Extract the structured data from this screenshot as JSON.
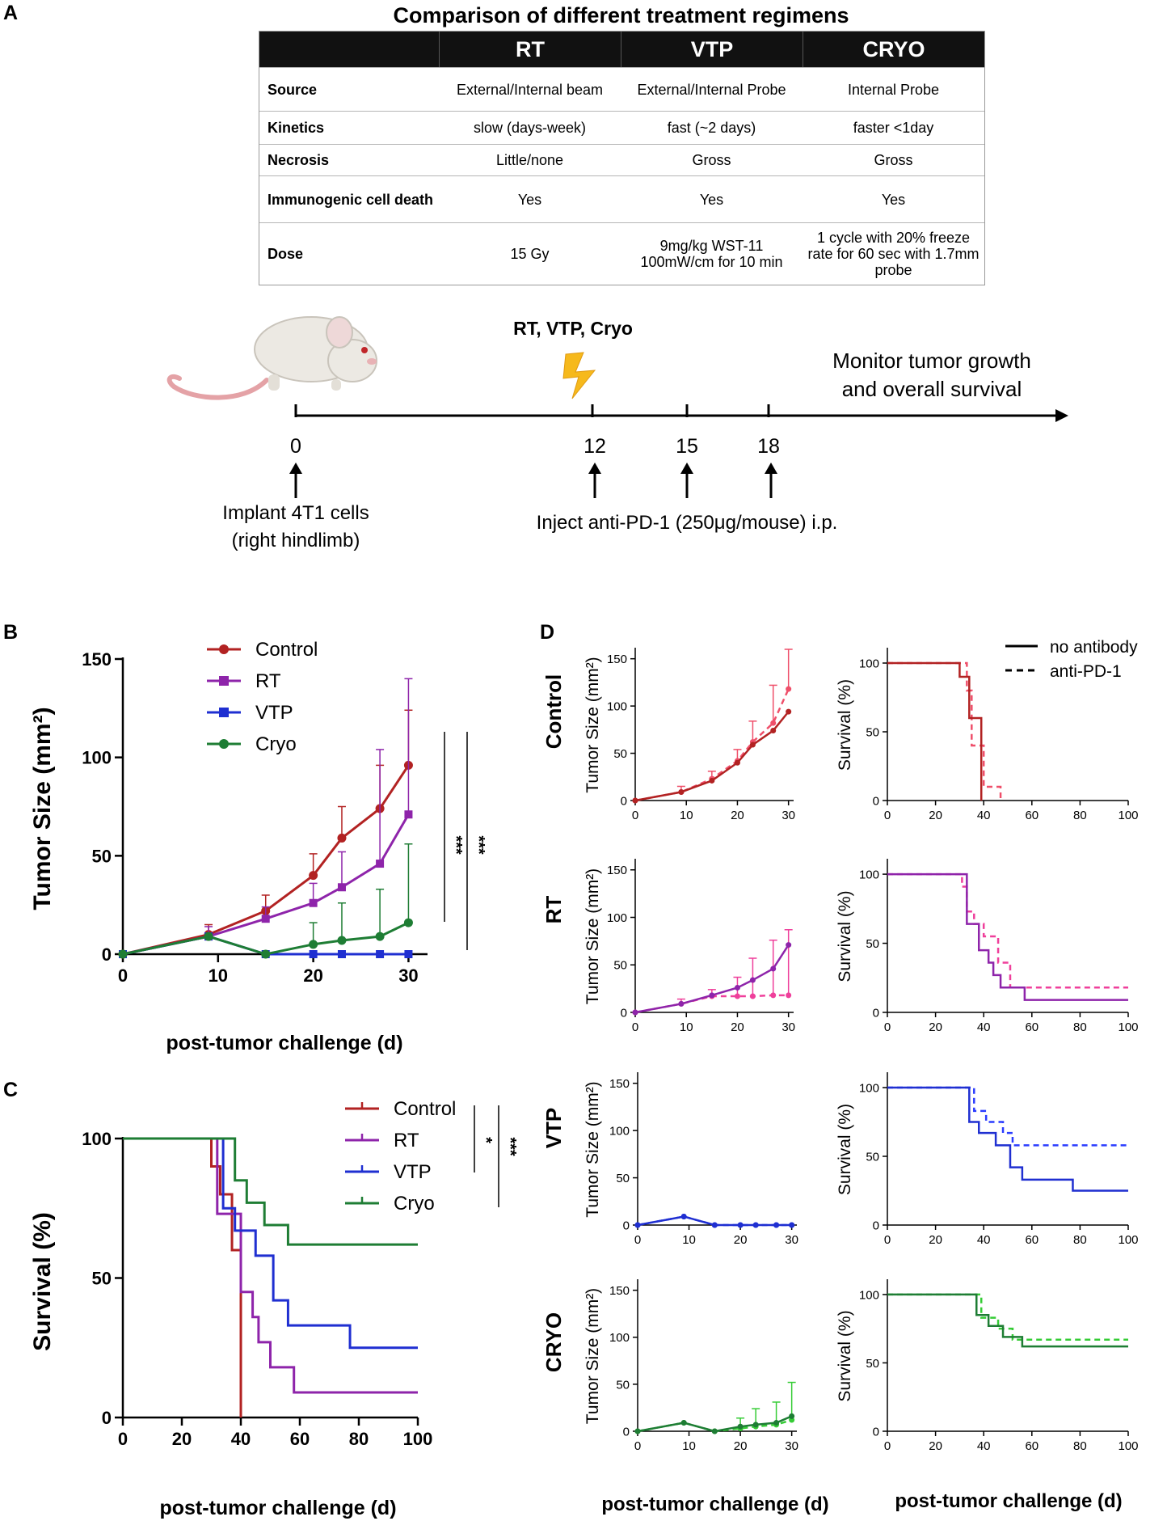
{
  "panels": {
    "a": "A",
    "b": "B",
    "c": "C",
    "d": "D"
  },
  "table": {
    "title": "Comparison of different treatment regimens",
    "headers": [
      "",
      "RT",
      "VTP",
      "CRYO"
    ],
    "rows": [
      [
        "Source",
        "External/Internal beam",
        "External/Internal Probe",
        "Internal Probe"
      ],
      [
        "Kinetics",
        "slow (days-week)",
        "fast (~2 days)",
        "faster <1day"
      ],
      [
        "Necrosis",
        "Little/none",
        "Gross",
        "Gross"
      ],
      [
        "Immunogenic cell death",
        "Yes",
        "Yes",
        "Yes"
      ],
      [
        "Dose",
        "15 Gy",
        "9mg/kg WST-11 100mW/cm for 10 min",
        "1 cycle with 20% freeze rate for 60 sec with 1.7mm probe"
      ]
    ]
  },
  "timeline": {
    "treatment_label": "RT, VTP, Cryo",
    "monitor_label_1": "Monitor tumor growth",
    "monitor_label_2": "and overall survival",
    "ticks": [
      "0",
      "12",
      "15",
      "18"
    ],
    "implant_label_1": "Implant 4T1 cells",
    "implant_label_2": "(right hindlimb)",
    "inject_label": "Inject anti-PD-1 (250μg/mouse) i.p."
  },
  "colors": {
    "control": "#b22222",
    "rt": "#8e24aa",
    "vtp": "#1f2fd1",
    "cryo": "#1e7d34",
    "control_pd1": "#ef4f6a",
    "rt_pd1": "#ef3f9b",
    "vtp_pd1": "#2a3cff",
    "cryo_pd1": "#35cc35"
  },
  "chart_data": [
    {
      "id": "B",
      "type": "line",
      "title": "",
      "xlabel": "post-tumor challenge (d)",
      "ylabel": "Tumor Size (mm²)",
      "xlim": [
        0,
        32
      ],
      "ylim": [
        0,
        150
      ],
      "xticks": [
        0,
        10,
        20,
        30
      ],
      "yticks": [
        0,
        50,
        100,
        150
      ],
      "legend": "top-left",
      "significance": [
        "***",
        "***"
      ],
      "series": [
        {
          "name": "Control",
          "key": "control",
          "x": [
            0,
            9,
            15,
            20,
            23,
            27,
            30
          ],
          "values": [
            0,
            10,
            22,
            40,
            59,
            74,
            96
          ],
          "err": [
            0,
            5,
            8,
            11,
            16,
            22,
            28
          ]
        },
        {
          "name": "RT",
          "key": "rt",
          "x": [
            0,
            9,
            15,
            20,
            23,
            27,
            30
          ],
          "values": [
            0,
            9,
            18,
            26,
            34,
            46,
            71
          ],
          "err": [
            0,
            5,
            6,
            10,
            18,
            58,
            69
          ]
        },
        {
          "name": "VTP",
          "key": "vtp",
          "x": [
            0,
            9,
            15,
            20,
            23,
            27,
            30
          ],
          "values": [
            0,
            9,
            0,
            0,
            0,
            0,
            0
          ],
          "err": [
            0,
            0,
            0,
            0,
            0,
            0,
            0
          ]
        },
        {
          "name": "Cryo",
          "key": "cryo",
          "x": [
            0,
            9,
            15,
            20,
            23,
            27,
            30
          ],
          "values": [
            0,
            9,
            0,
            5,
            7,
            9,
            16
          ],
          "err": [
            0,
            0,
            0,
            11,
            19,
            24,
            40
          ]
        }
      ]
    },
    {
      "id": "C",
      "type": "line",
      "title": "",
      "xlabel": "post-tumor challenge (d)",
      "ylabel": "Survival (%)",
      "xlim": [
        0,
        100
      ],
      "ylim": [
        0,
        100
      ],
      "xticks": [
        0,
        20,
        40,
        60,
        80,
        100
      ],
      "yticks": [
        0,
        50,
        100
      ],
      "legend": "top-right",
      "significance": [
        "*",
        "***"
      ],
      "series": [
        {
          "name": "Control",
          "key": "control",
          "steps": [
            [
              0,
              100
            ],
            [
              30,
              90
            ],
            [
              33,
              80
            ],
            [
              37,
              60
            ],
            [
              40,
              0
            ]
          ]
        },
        {
          "name": "RT",
          "key": "rt",
          "steps": [
            [
              0,
              100
            ],
            [
              32,
              73
            ],
            [
              40,
              45
            ],
            [
              44,
              36
            ],
            [
              46,
              27
            ],
            [
              50,
              18
            ],
            [
              58,
              9
            ],
            [
              100,
              9
            ]
          ]
        },
        {
          "name": "VTP",
          "key": "vtp",
          "steps": [
            [
              0,
              100
            ],
            [
              34,
              75
            ],
            [
              38,
              67
            ],
            [
              45,
              58
            ],
            [
              51,
              42
            ],
            [
              56,
              33
            ],
            [
              77,
              25
            ],
            [
              100,
              25
            ]
          ]
        },
        {
          "name": "Cryo",
          "key": "cryo",
          "steps": [
            [
              0,
              100
            ],
            [
              38,
              85
            ],
            [
              42,
              77
            ],
            [
              48,
              69
            ],
            [
              56,
              62
            ],
            [
              100,
              62
            ]
          ]
        }
      ]
    },
    {
      "id": "D",
      "type": "line",
      "legend_entries": [
        "no antibody",
        "anti-PD-1"
      ],
      "row_labels": [
        "Control",
        "RT",
        "VTP",
        "CRYO"
      ],
      "xlabel": "post-tumor challenge (d)",
      "tumor_ylabels": [
        "Tumor Size (mm²)",
        "Tumor Size (mm²)",
        "Tumor Size (mm²)",
        "Tumor Size (mm²)"
      ],
      "survival_ylabel": "Survival (%)",
      "tumor_xticks": [
        0,
        10,
        20,
        30
      ],
      "tumor_yticks": [
        0,
        50,
        100,
        150
      ],
      "survival_xticks": [
        0,
        20,
        40,
        60,
        80,
        100
      ],
      "survival_yticks": [
        0,
        50,
        100
      ],
      "rows": [
        {
          "key": "control",
          "pd1": "control_pd1",
          "tumor": {
            "x": [
              0,
              9,
              15,
              20,
              23,
              27,
              30
            ],
            "solid": [
              0,
              9,
              21,
              40,
              59,
              74,
              94
            ],
            "dashed": [
              0,
              9,
              23,
              42,
              62,
              82,
              118
            ],
            "err": [
              0,
              6,
              8,
              12,
              22,
              40,
              42
            ]
          },
          "survival": {
            "solid": [
              [
                0,
                100
              ],
              [
                30,
                90
              ],
              [
                34,
                60
              ],
              [
                39,
                0
              ]
            ],
            "dashed": [
              [
                0,
                100
              ],
              [
                33,
                80
              ],
              [
                35,
                40
              ],
              [
                40,
                10
              ],
              [
                47,
                0
              ]
            ]
          }
        },
        {
          "key": "rt",
          "pd1": "rt_pd1",
          "tumor": {
            "x": [
              0,
              9,
              15,
              20,
              23,
              27,
              30
            ],
            "solid": [
              0,
              9,
              18,
              26,
              34,
              46,
              71
            ],
            "dashed": [
              0,
              9,
              17,
              17,
              17,
              18,
              18
            ],
            "err": [
              0,
              5,
              7,
              20,
              40,
              58,
              69
            ]
          },
          "survival": {
            "solid": [
              [
                0,
                100
              ],
              [
                33,
                64
              ],
              [
                38,
                45
              ],
              [
                42,
                36
              ],
              [
                44,
                27
              ],
              [
                47,
                18
              ],
              [
                57,
                9
              ],
              [
                100,
                9
              ]
            ],
            "dashed": [
              [
                0,
                100
              ],
              [
                31,
                91
              ],
              [
                33,
                73
              ],
              [
                36,
                64
              ],
              [
                40,
                55
              ],
              [
                46,
                36
              ],
              [
                51,
                18
              ],
              [
                100,
                18
              ]
            ]
          }
        },
        {
          "key": "vtp",
          "pd1": "vtp_pd1",
          "tumor": {
            "x": [
              0,
              9,
              15,
              20,
              23,
              27,
              30
            ],
            "solid": [
              0,
              9,
              0,
              0,
              0,
              0,
              0
            ],
            "dashed": [
              0,
              9,
              0,
              0,
              0,
              0,
              0
            ],
            "err": [
              0,
              0,
              0,
              0,
              0,
              0,
              0
            ]
          },
          "survival": {
            "solid": [
              [
                0,
                100
              ],
              [
                34,
                75
              ],
              [
                38,
                67
              ],
              [
                45,
                58
              ],
              [
                51,
                42
              ],
              [
                56,
                33
              ],
              [
                77,
                25
              ],
              [
                100,
                25
              ]
            ],
            "dashed": [
              [
                0,
                100
              ],
              [
                36,
                83
              ],
              [
                41,
                75
              ],
              [
                48,
                67
              ],
              [
                52,
                58
              ],
              [
                100,
                58
              ]
            ]
          }
        },
        {
          "key": "cryo",
          "pd1": "cryo_pd1",
          "tumor": {
            "x": [
              0,
              9,
              15,
              20,
              23,
              27,
              30
            ],
            "solid": [
              0,
              9,
              0,
              5,
              7,
              9,
              16
            ],
            "dashed": [
              0,
              9,
              0,
              3,
              5,
              7,
              12
            ],
            "err": [
              0,
              0,
              0,
              11,
              19,
              24,
              40
            ]
          },
          "survival": {
            "solid": [
              [
                0,
                100
              ],
              [
                37,
                85
              ],
              [
                42,
                77
              ],
              [
                48,
                69
              ],
              [
                56,
                62
              ],
              [
                100,
                62
              ]
            ],
            "dashed": [
              [
                0,
                100
              ],
              [
                39,
                83
              ],
              [
                46,
                75
              ],
              [
                52,
                67
              ],
              [
                100,
                67
              ]
            ]
          }
        }
      ]
    }
  ]
}
